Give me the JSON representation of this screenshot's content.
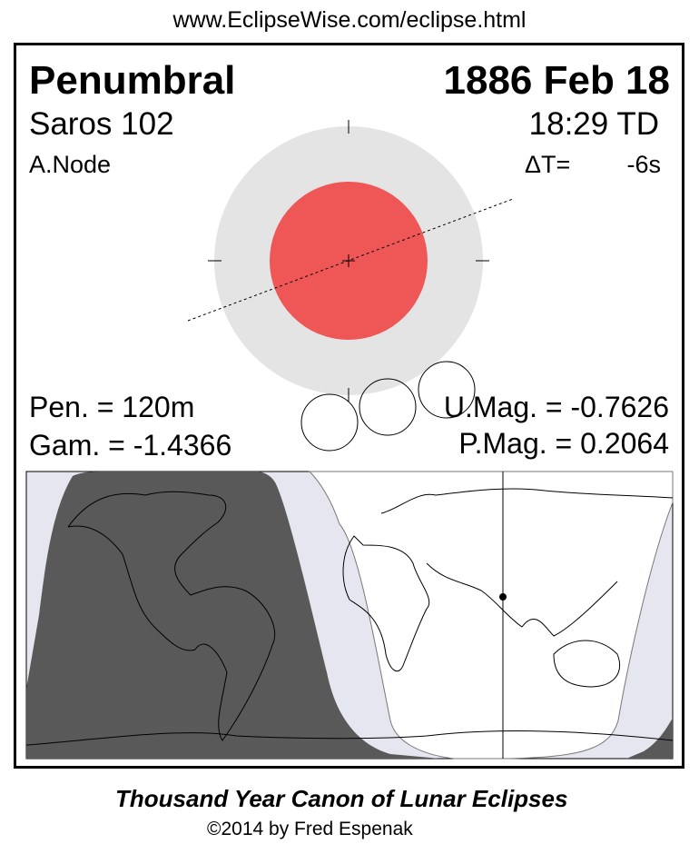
{
  "header": {
    "url": "www.EclipseWise.com/eclipse.html"
  },
  "eclipse": {
    "type": "Penumbral",
    "date": "1886 Feb 18",
    "saros": "Saros 102",
    "time": "18:29 TD",
    "node": "A.Node",
    "delta_t_label": "ΔT=",
    "delta_t_value": "-6s",
    "pen_duration": "Pen. = 120m",
    "gamma": "Gam. = -1.4366",
    "umbral_mag": "U.Mag. = -0.7626",
    "penumbral_mag": "P.Mag. = 0.2064"
  },
  "colors": {
    "penumbra": "#e4e4e4",
    "umbra": "#ef5656",
    "map_night": "#595959",
    "map_penumbral": "#e6e6f0",
    "map_day": "#ffffff"
  },
  "footer": {
    "title": "Thousand Year Canon of Lunar Eclipses",
    "copyright": "©2014 by Fred Espenak"
  }
}
